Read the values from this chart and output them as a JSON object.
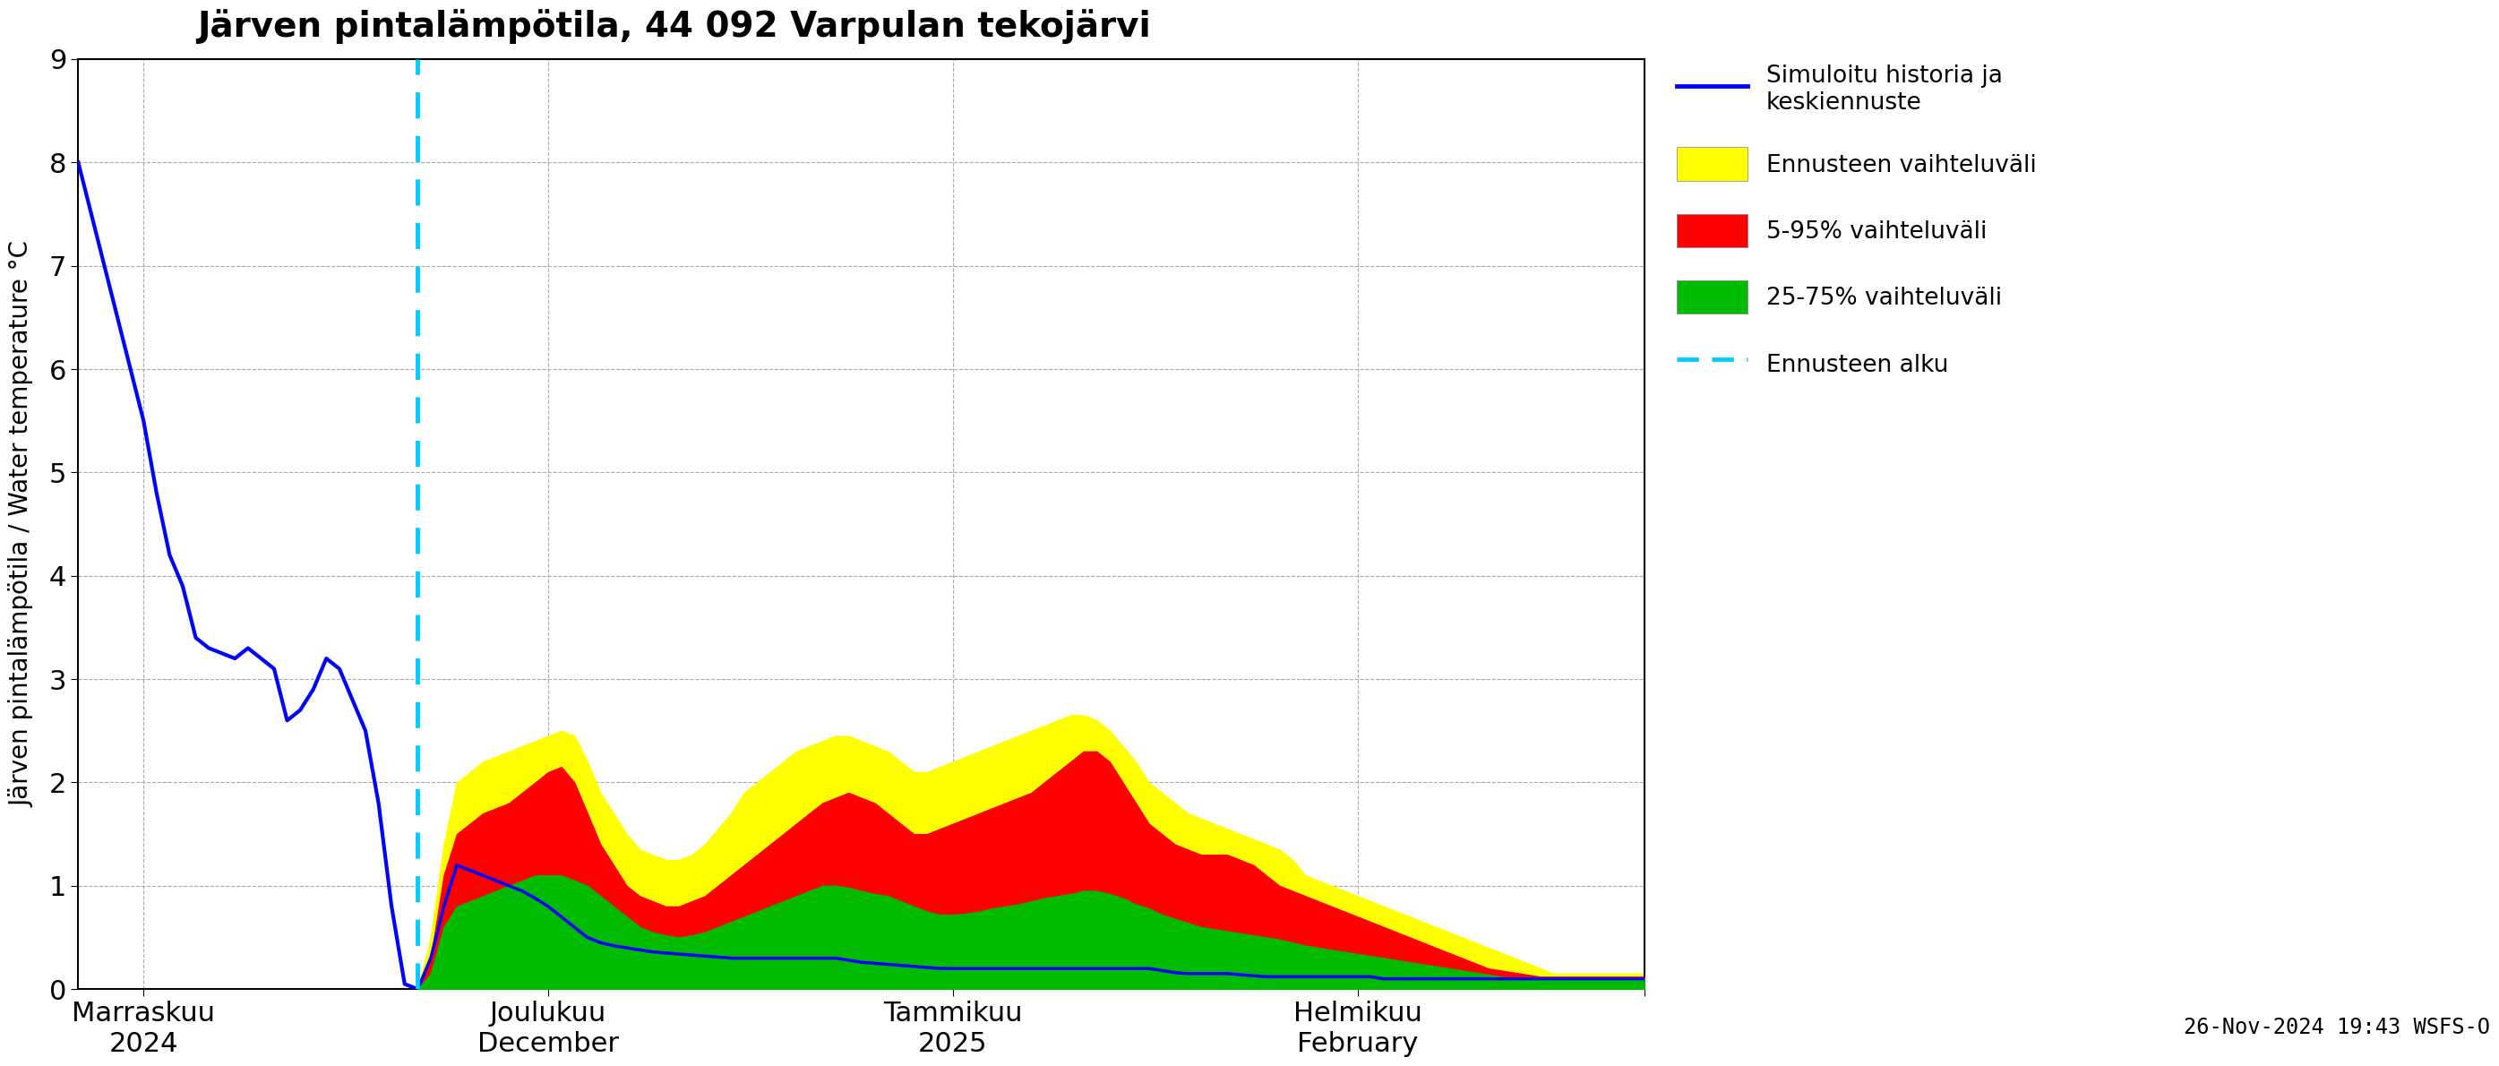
{
  "title": "Järven pintalämpötila, 44 092 Varpulan tekojärvi",
  "ylabel_fi": "Järven pintalämpötila / Water temperature °C",
  "ylim": [
    0,
    9
  ],
  "yticks": [
    0,
    1,
    2,
    3,
    4,
    5,
    6,
    7,
    8,
    9
  ],
  "background_color": "#ffffff",
  "grid_color": "#aaaaaa",
  "timestamp_text": "26-Nov-2024 19:43 WSFS-O",
  "legend_labels": [
    "Simuloitu historia ja\nkeskiennuste",
    "Ennusteen vaihteluväli",
    "5-95% vaihteluväli",
    "25-75% vaihteluväli",
    "Ennusteen alku"
  ],
  "forecast_start_day": 26,
  "history_days": [
    0,
    1,
    2,
    3,
    4,
    5,
    6,
    7,
    8,
    9,
    10,
    11,
    12,
    13,
    14,
    15,
    16,
    17,
    18,
    19,
    20,
    21,
    22,
    23,
    24,
    25,
    26
  ],
  "history_y": [
    8.0,
    7.5,
    7.0,
    6.5,
    6.0,
    5.5,
    4.8,
    4.2,
    3.9,
    3.4,
    3.3,
    3.25,
    3.2,
    3.3,
    3.2,
    3.1,
    2.6,
    2.7,
    2.9,
    3.2,
    3.1,
    2.8,
    2.5,
    1.8,
    0.8,
    0.05,
    0.0
  ],
  "forecast_days": [
    26,
    27,
    28,
    29,
    30,
    31,
    32,
    33,
    34,
    35,
    36,
    37,
    38,
    39,
    40,
    41,
    42,
    43,
    44,
    45,
    46,
    47,
    48,
    49,
    50,
    51,
    52,
    53,
    54,
    55,
    56,
    57,
    58,
    59,
    60,
    61,
    62,
    63,
    64,
    65,
    66,
    67,
    68,
    69,
    70,
    71,
    72,
    73,
    74,
    75,
    76,
    77,
    78,
    79,
    80,
    81,
    82,
    83,
    84,
    85,
    86,
    87,
    88,
    89,
    90,
    91,
    92,
    93,
    94,
    95,
    96,
    97,
    98,
    99,
    100,
    101,
    102,
    103,
    104,
    105,
    106,
    107,
    108,
    109,
    110,
    111,
    112,
    113,
    114,
    115,
    116,
    117,
    118,
    119,
    120
  ],
  "forecast_mean_y": [
    0.0,
    0.3,
    0.8,
    1.2,
    1.15,
    1.1,
    1.05,
    1.0,
    0.95,
    0.88,
    0.8,
    0.7,
    0.6,
    0.5,
    0.45,
    0.42,
    0.4,
    0.38,
    0.36,
    0.35,
    0.34,
    0.33,
    0.32,
    0.31,
    0.3,
    0.3,
    0.3,
    0.3,
    0.3,
    0.3,
    0.3,
    0.3,
    0.3,
    0.28,
    0.26,
    0.25,
    0.24,
    0.23,
    0.22,
    0.21,
    0.2,
    0.2,
    0.2,
    0.2,
    0.2,
    0.2,
    0.2,
    0.2,
    0.2,
    0.2,
    0.2,
    0.2,
    0.2,
    0.2,
    0.2,
    0.2,
    0.2,
    0.18,
    0.16,
    0.15,
    0.15,
    0.15,
    0.15,
    0.14,
    0.13,
    0.12,
    0.12,
    0.12,
    0.12,
    0.12,
    0.12,
    0.12,
    0.12,
    0.12,
    0.1,
    0.1,
    0.1,
    0.1,
    0.1,
    0.1,
    0.1,
    0.1,
    0.1,
    0.1,
    0.1,
    0.1,
    0.1,
    0.1,
    0.1,
    0.1,
    0.1,
    0.1,
    0.1,
    0.1,
    0.1
  ],
  "ennuste_high": [
    0.0,
    0.5,
    1.4,
    2.0,
    2.1,
    2.2,
    2.25,
    2.3,
    2.35,
    2.4,
    2.45,
    2.5,
    2.45,
    2.2,
    1.9,
    1.7,
    1.5,
    1.35,
    1.3,
    1.25,
    1.25,
    1.3,
    1.4,
    1.55,
    1.7,
    1.9,
    2.0,
    2.1,
    2.2,
    2.3,
    2.35,
    2.4,
    2.45,
    2.45,
    2.4,
    2.35,
    2.3,
    2.2,
    2.1,
    2.1,
    2.15,
    2.2,
    2.25,
    2.3,
    2.35,
    2.4,
    2.45,
    2.5,
    2.55,
    2.6,
    2.65,
    2.65,
    2.6,
    2.5,
    2.35,
    2.2,
    2.0,
    1.9,
    1.8,
    1.7,
    1.65,
    1.6,
    1.55,
    1.5,
    1.45,
    1.4,
    1.35,
    1.25,
    1.1,
    1.05,
    1.0,
    0.95,
    0.9,
    0.85,
    0.8,
    0.75,
    0.7,
    0.65,
    0.6,
    0.55,
    0.5,
    0.45,
    0.4,
    0.35,
    0.3,
    0.25,
    0.2,
    0.15,
    0.15,
    0.15,
    0.15,
    0.15,
    0.15,
    0.15,
    0.15
  ],
  "band_5_95_high": [
    0.0,
    0.3,
    1.1,
    1.5,
    1.6,
    1.7,
    1.75,
    1.8,
    1.9,
    2.0,
    2.1,
    2.15,
    2.0,
    1.7,
    1.4,
    1.2,
    1.0,
    0.9,
    0.85,
    0.8,
    0.8,
    0.85,
    0.9,
    1.0,
    1.1,
    1.2,
    1.3,
    1.4,
    1.5,
    1.6,
    1.7,
    1.8,
    1.85,
    1.9,
    1.85,
    1.8,
    1.7,
    1.6,
    1.5,
    1.5,
    1.55,
    1.6,
    1.65,
    1.7,
    1.75,
    1.8,
    1.85,
    1.9,
    2.0,
    2.1,
    2.2,
    2.3,
    2.3,
    2.2,
    2.0,
    1.8,
    1.6,
    1.5,
    1.4,
    1.35,
    1.3,
    1.3,
    1.3,
    1.25,
    1.2,
    1.1,
    1.0,
    0.95,
    0.9,
    0.85,
    0.8,
    0.75,
    0.7,
    0.65,
    0.6,
    0.55,
    0.5,
    0.45,
    0.4,
    0.35,
    0.3,
    0.25,
    0.2,
    0.18,
    0.16,
    0.14,
    0.12,
    0.12,
    0.12,
    0.12,
    0.12,
    0.12,
    0.12,
    0.12,
    0.12
  ],
  "band_25_75_high": [
    0.0,
    0.15,
    0.6,
    0.8,
    0.85,
    0.9,
    0.95,
    1.0,
    1.05,
    1.1,
    1.1,
    1.1,
    1.05,
    1.0,
    0.9,
    0.8,
    0.7,
    0.6,
    0.55,
    0.52,
    0.5,
    0.52,
    0.55,
    0.6,
    0.65,
    0.7,
    0.75,
    0.8,
    0.85,
    0.9,
    0.95,
    1.0,
    1.0,
    0.98,
    0.95,
    0.92,
    0.9,
    0.85,
    0.8,
    0.75,
    0.72,
    0.72,
    0.73,
    0.75,
    0.78,
    0.8,
    0.82,
    0.85,
    0.88,
    0.9,
    0.92,
    0.95,
    0.95,
    0.92,
    0.88,
    0.82,
    0.78,
    0.72,
    0.68,
    0.64,
    0.6,
    0.58,
    0.56,
    0.54,
    0.52,
    0.5,
    0.48,
    0.45,
    0.42,
    0.4,
    0.38,
    0.36,
    0.34,
    0.32,
    0.3,
    0.28,
    0.26,
    0.24,
    0.22,
    0.2,
    0.18,
    0.16,
    0.14,
    0.12,
    0.1,
    0.1,
    0.1,
    0.1,
    0.1,
    0.1,
    0.1,
    0.1,
    0.1,
    0.1,
    0.1
  ],
  "x_tick_days": [
    5,
    36,
    67,
    98,
    120
  ],
  "x_tick_labels": [
    "Marraskuu\n2024",
    "Joulukuu\nDecember",
    "Tammikuu\n2025",
    "Helmikuu\nFebruary",
    ""
  ]
}
